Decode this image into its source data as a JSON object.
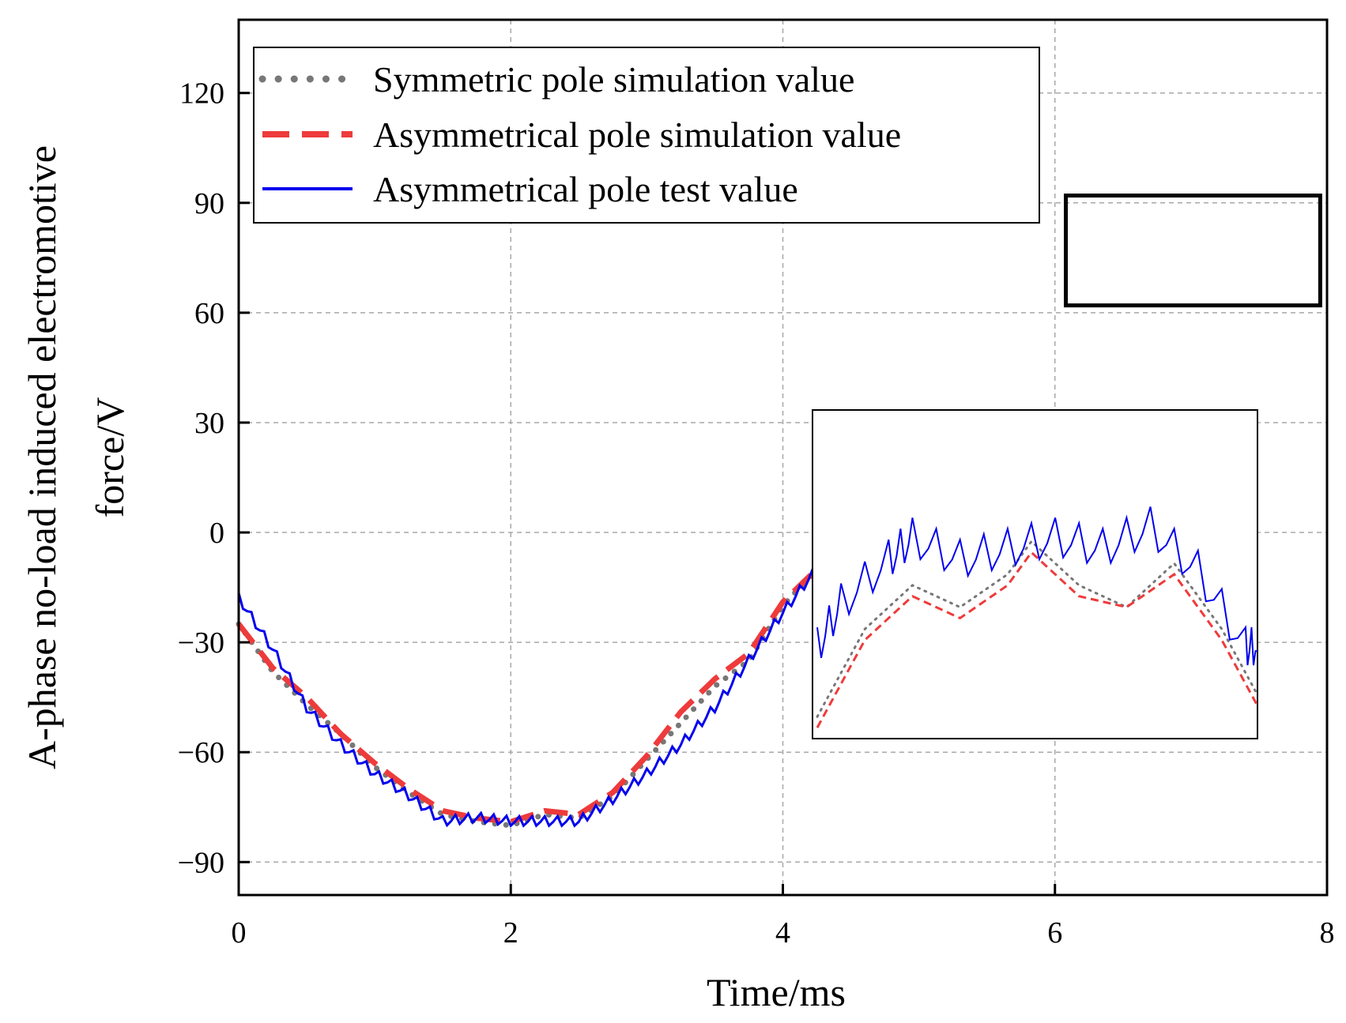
{
  "chart_data": {
    "type": "line",
    "xlabel": "Time/ms",
    "ylabel_lines": [
      "A-phase no-load induced electromotive",
      "force/V"
    ],
    "xlim": [
      0,
      8
    ],
    "ylim": [
      -99,
      140
    ],
    "xticks": [
      0,
      2,
      4,
      6,
      8
    ],
    "yticks": [
      -90,
      -60,
      -30,
      0,
      30,
      60,
      90,
      120
    ],
    "xtick_labels": [
      "0",
      "2",
      "4",
      "6",
      "8"
    ],
    "ytick_labels": [
      "−90",
      "−60",
      "−30",
      "0",
      "30",
      "60",
      "90",
      "120"
    ],
    "grid": true,
    "legend_position": "top-left",
    "series": [
      {
        "name": "Symmetric pole simulation value",
        "style": "dotted",
        "color": "#777777",
        "x": [
          0,
          0.25,
          0.5,
          0.75,
          1.0,
          1.25,
          1.5,
          1.75,
          2.0,
          2.25,
          2.5,
          2.75,
          3.0,
          3.25,
          3.5,
          3.75,
          4.0,
          4.25
        ],
        "y": [
          -25,
          -38,
          -47,
          -55,
          -64,
          -71,
          -77,
          -79,
          -80,
          -77,
          -78,
          -72,
          -62,
          -52,
          -42,
          -35,
          -20,
          -10
        ]
      },
      {
        "name": "Asymmetrical pole simulation value",
        "style": "dashed",
        "color": "#ee3b3b",
        "x": [
          0,
          0.25,
          0.5,
          0.75,
          1.0,
          1.25,
          1.5,
          1.75,
          2.0,
          2.25,
          2.5,
          2.75,
          3.0,
          3.25,
          3.5,
          3.75,
          4.0,
          4.25
        ],
        "y": [
          -25,
          -37,
          -45,
          -55,
          -63,
          -70,
          -76,
          -78,
          -79,
          -76,
          -77,
          -71,
          -61,
          -49,
          -40,
          -33,
          -19,
          -10
        ]
      },
      {
        "name": "Asymmetrical pole test value",
        "style": "solid",
        "color": "#0000ee",
        "x": [
          0,
          0.25,
          0.5,
          0.75,
          1.0,
          1.25,
          1.5,
          1.75,
          2.0,
          2.25,
          2.5,
          2.75,
          3.0,
          3.25,
          3.5,
          3.75,
          4.0,
          4.25
        ],
        "y": [
          -18,
          -32,
          -48,
          -58,
          -66,
          -72,
          -79,
          -78,
          -79,
          -79,
          -79,
          -73,
          -66,
          -58,
          -48,
          -35,
          -22,
          -10
        ]
      }
    ],
    "zoom_region": {
      "x": [
        6.08,
        7.95
      ],
      "y": [
        62,
        92
      ]
    },
    "inset_series": [
      {
        "name": "Symmetric pole simulation value",
        "x": [
          6.1,
          6.3,
          6.5,
          6.7,
          6.9,
          7.0,
          7.2,
          7.4,
          7.6,
          7.8,
          7.95
        ],
        "y": [
          64,
          72,
          76,
          74,
          77,
          80,
          76,
          74,
          78,
          72,
          66
        ]
      },
      {
        "name": "Asymmetrical pole simulation value",
        "x": [
          6.1,
          6.3,
          6.5,
          6.7,
          6.9,
          7.0,
          7.2,
          7.4,
          7.6,
          7.8,
          7.95
        ],
        "y": [
          63,
          71,
          75,
          73,
          76,
          79,
          75,
          74,
          77,
          71,
          65
        ]
      },
      {
        "name": "Asymmetrical pole test value",
        "x": [
          6.1,
          6.2,
          6.4,
          6.5,
          6.7,
          6.9,
          7.1,
          7.3,
          7.5,
          7.7,
          7.9,
          7.95
        ],
        "y": [
          70,
          74,
          78,
          80,
          78,
          79,
          80,
          79,
          81,
          77,
          70,
          70
        ]
      }
    ]
  }
}
